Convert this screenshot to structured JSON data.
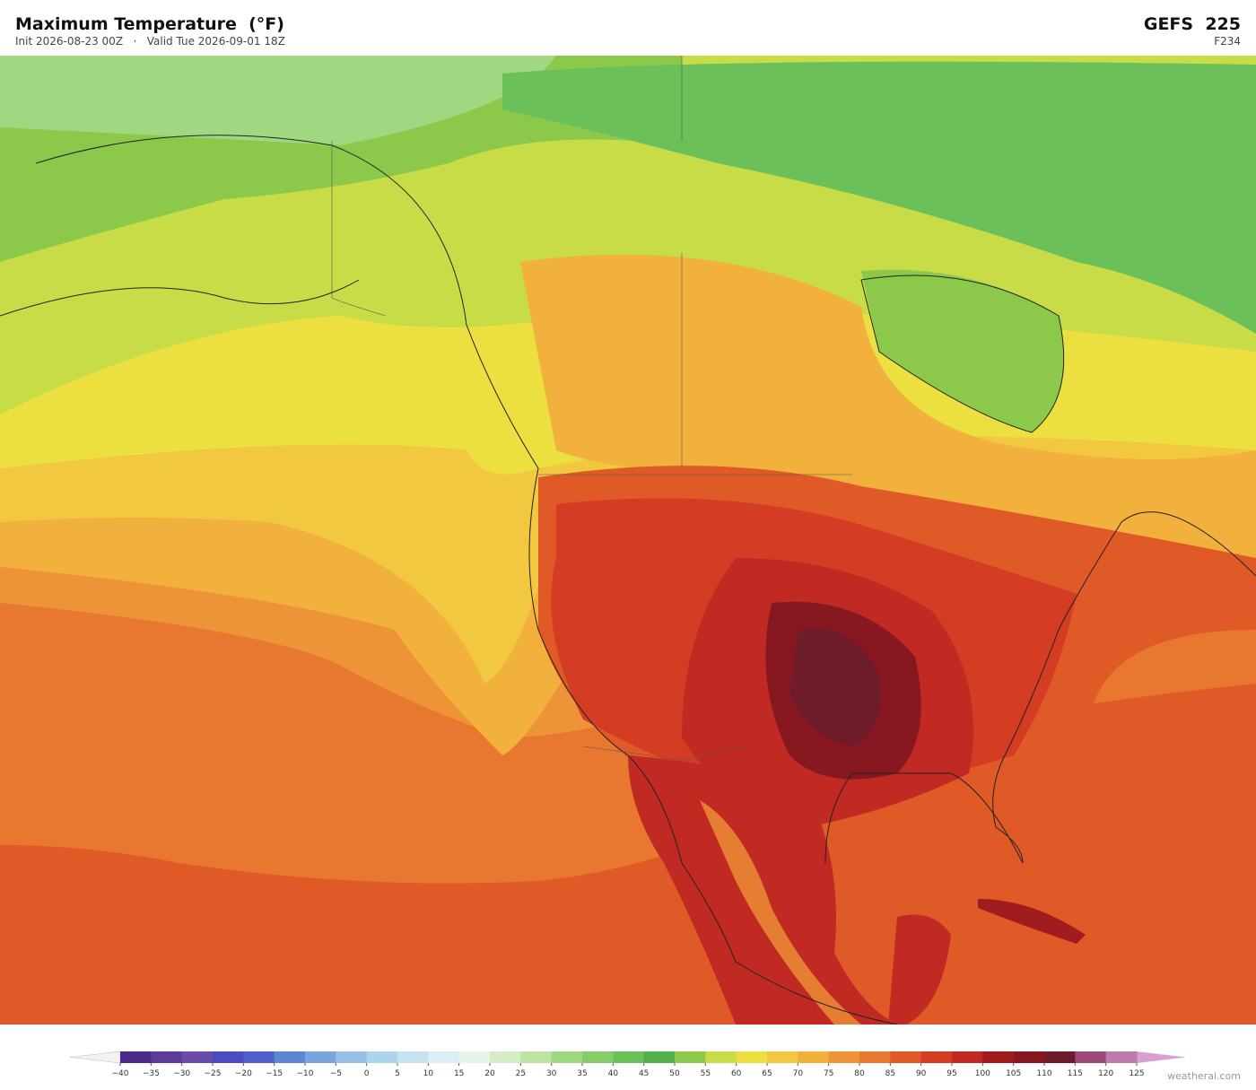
{
  "header": {
    "title": "Maximum Temperature  (°F)",
    "subtitle": "Init 2026-08-23 00Z   ·   Valid Tue 2026-09-01 18Z",
    "model": "GEFS  225",
    "forecast_hour": "F234"
  },
  "colorbar": {
    "ticks": [
      {
        "value": -40,
        "label": "−40"
      },
      {
        "value": -35,
        "label": "−35"
      },
      {
        "value": -30,
        "label": "−30"
      },
      {
        "value": -25,
        "label": "−25"
      },
      {
        "value": -20,
        "label": "−20"
      },
      {
        "value": -15,
        "label": "−15"
      },
      {
        "value": -10,
        "label": "−10"
      },
      {
        "value": -5,
        "label": "−5"
      },
      0,
      5,
      10,
      15,
      20,
      25,
      30,
      35,
      40,
      45,
      50,
      55,
      60,
      65,
      70,
      75,
      80,
      85,
      90,
      95,
      100,
      105,
      110,
      115,
      120,
      125
    ],
    "colors": [
      "#4b2a8c",
      "#5e3a9a",
      "#6b4ba8",
      "#4a4cc0",
      "#4f5fcc",
      "#5d86d4",
      "#7aa4dc",
      "#98c0e4",
      "#add4ec",
      "#c4e2f0",
      "#daeef4",
      "#e6f4ea",
      "#d4ecc8",
      "#bde3a0",
      "#a0d882",
      "#86cc6a",
      "#6cc05a",
      "#52b04c",
      "#8cc84a",
      "#c8dc48",
      "#ece040",
      "#f2c840",
      "#f2b03c",
      "#ee9438",
      "#e87830",
      "#e05a28",
      "#d43c24",
      "#c02a22",
      "#a01c1e",
      "#881820",
      "#6e1c2a",
      "#9c4a7c",
      "#c07aac"
    ],
    "under_color": "#f2f2f2",
    "over_color": "#d8a0d0"
  },
  "footer": {
    "credit": "weatherai.com"
  }
}
